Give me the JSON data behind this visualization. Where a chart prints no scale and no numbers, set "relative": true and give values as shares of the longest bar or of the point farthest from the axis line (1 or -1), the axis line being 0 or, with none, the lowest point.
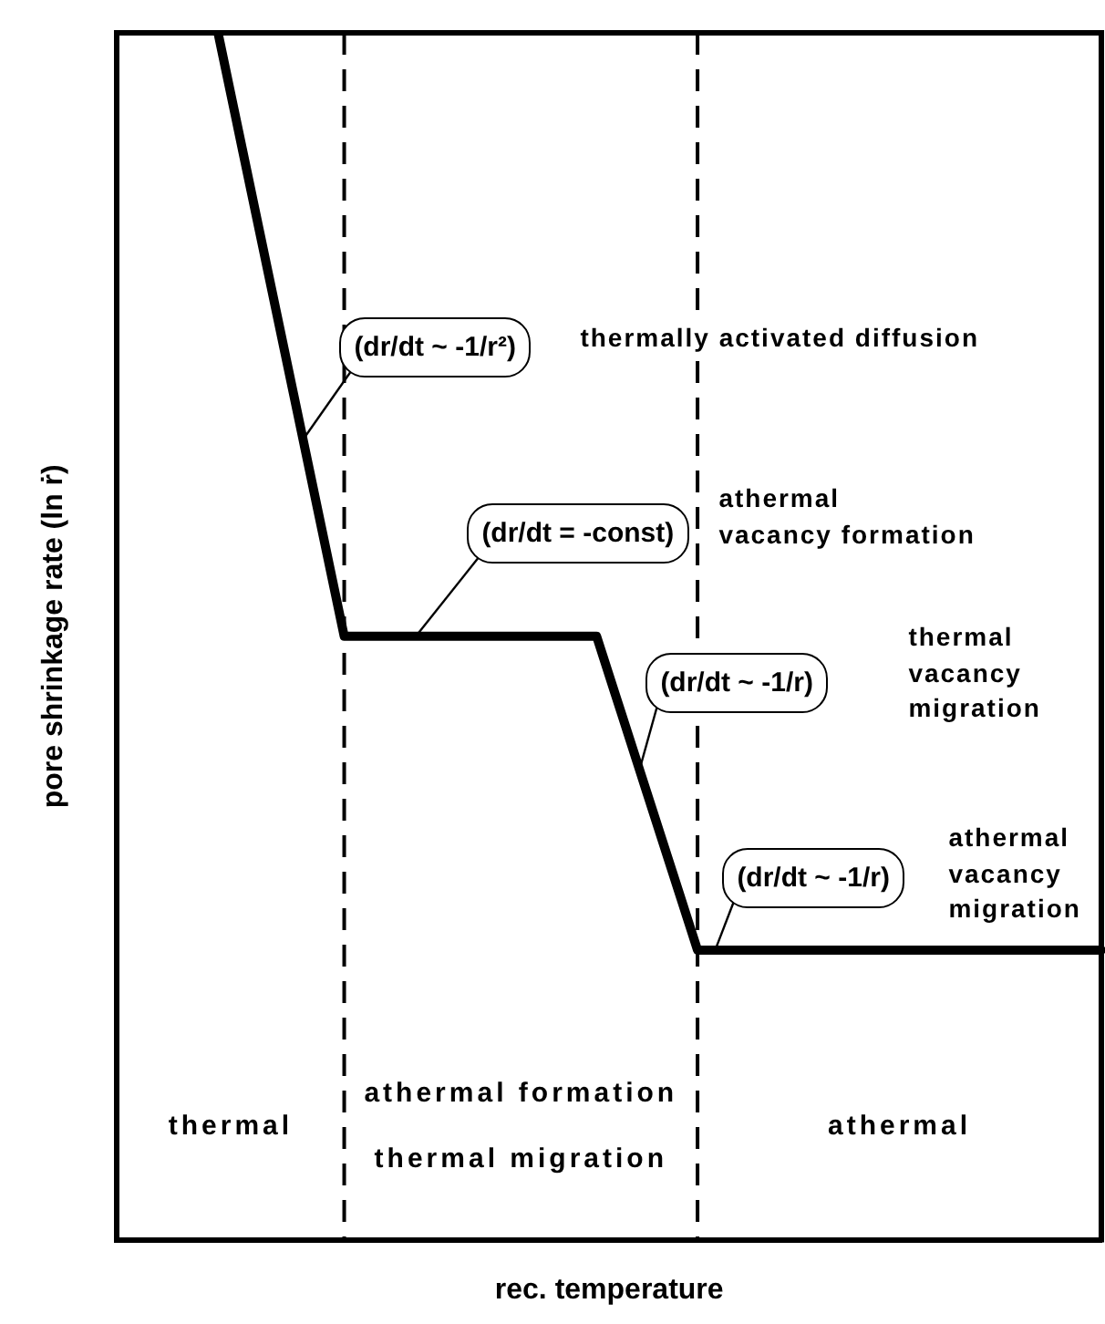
{
  "chart_data": {
    "type": "line",
    "xlabel": "rec. temperature",
    "ylabel": "pore shrinkage rate (ln ṙ)",
    "categories": [
      null,
      null,
      null,
      null,
      null,
      null,
      null,
      null,
      null,
      null,
      null,
      null,
      null,
      null,
      null,
      null,
      null,
      null,
      null,
      null,
      null,
      null,
      null,
      null,
      null,
      null,
      null,
      null,
      null,
      null,
      null,
      null,
      null,
      null,
      null,
      null,
      null,
      null,
      null,
      null
    ],
    "values": [
      null,
      null,
      null,
      null,
      1,
      0.9,
      0.8,
      0.7,
      0.6,
      0.5,
      0.5,
      0.5,
      0.5,
      0.5,
      0.5,
      0.5,
      0.5,
      0.5,
      0.5,
      0.5,
      0.435,
      0.37,
      0.305,
      0.24,
      0.24,
      0.24,
      0.24,
      0.24,
      0.24,
      0.24,
      0.24,
      0.24,
      0.24,
      0.24,
      0.24,
      0.24,
      0.24,
      0.24,
      0.24,
      0.24
    ],
    "color": "#000000",
    "relative": true,
    "marker": "none",
    "tick_labels": false,
    "annotations": [
      "(dr/dt ~ -1/r²)",
      "thermally activated diffusion",
      "(dr/dt = -const)",
      "athermal\nvacancy formation",
      "(dr/dt ~ -1/r)",
      "thermal\nvacancy\nmigration",
      "(dr/dt ~ -1/r)",
      "athermal\nvacancy\nmigration",
      "thermal",
      "athermal formation thermal migration",
      "athermal"
    ]
  }
}
